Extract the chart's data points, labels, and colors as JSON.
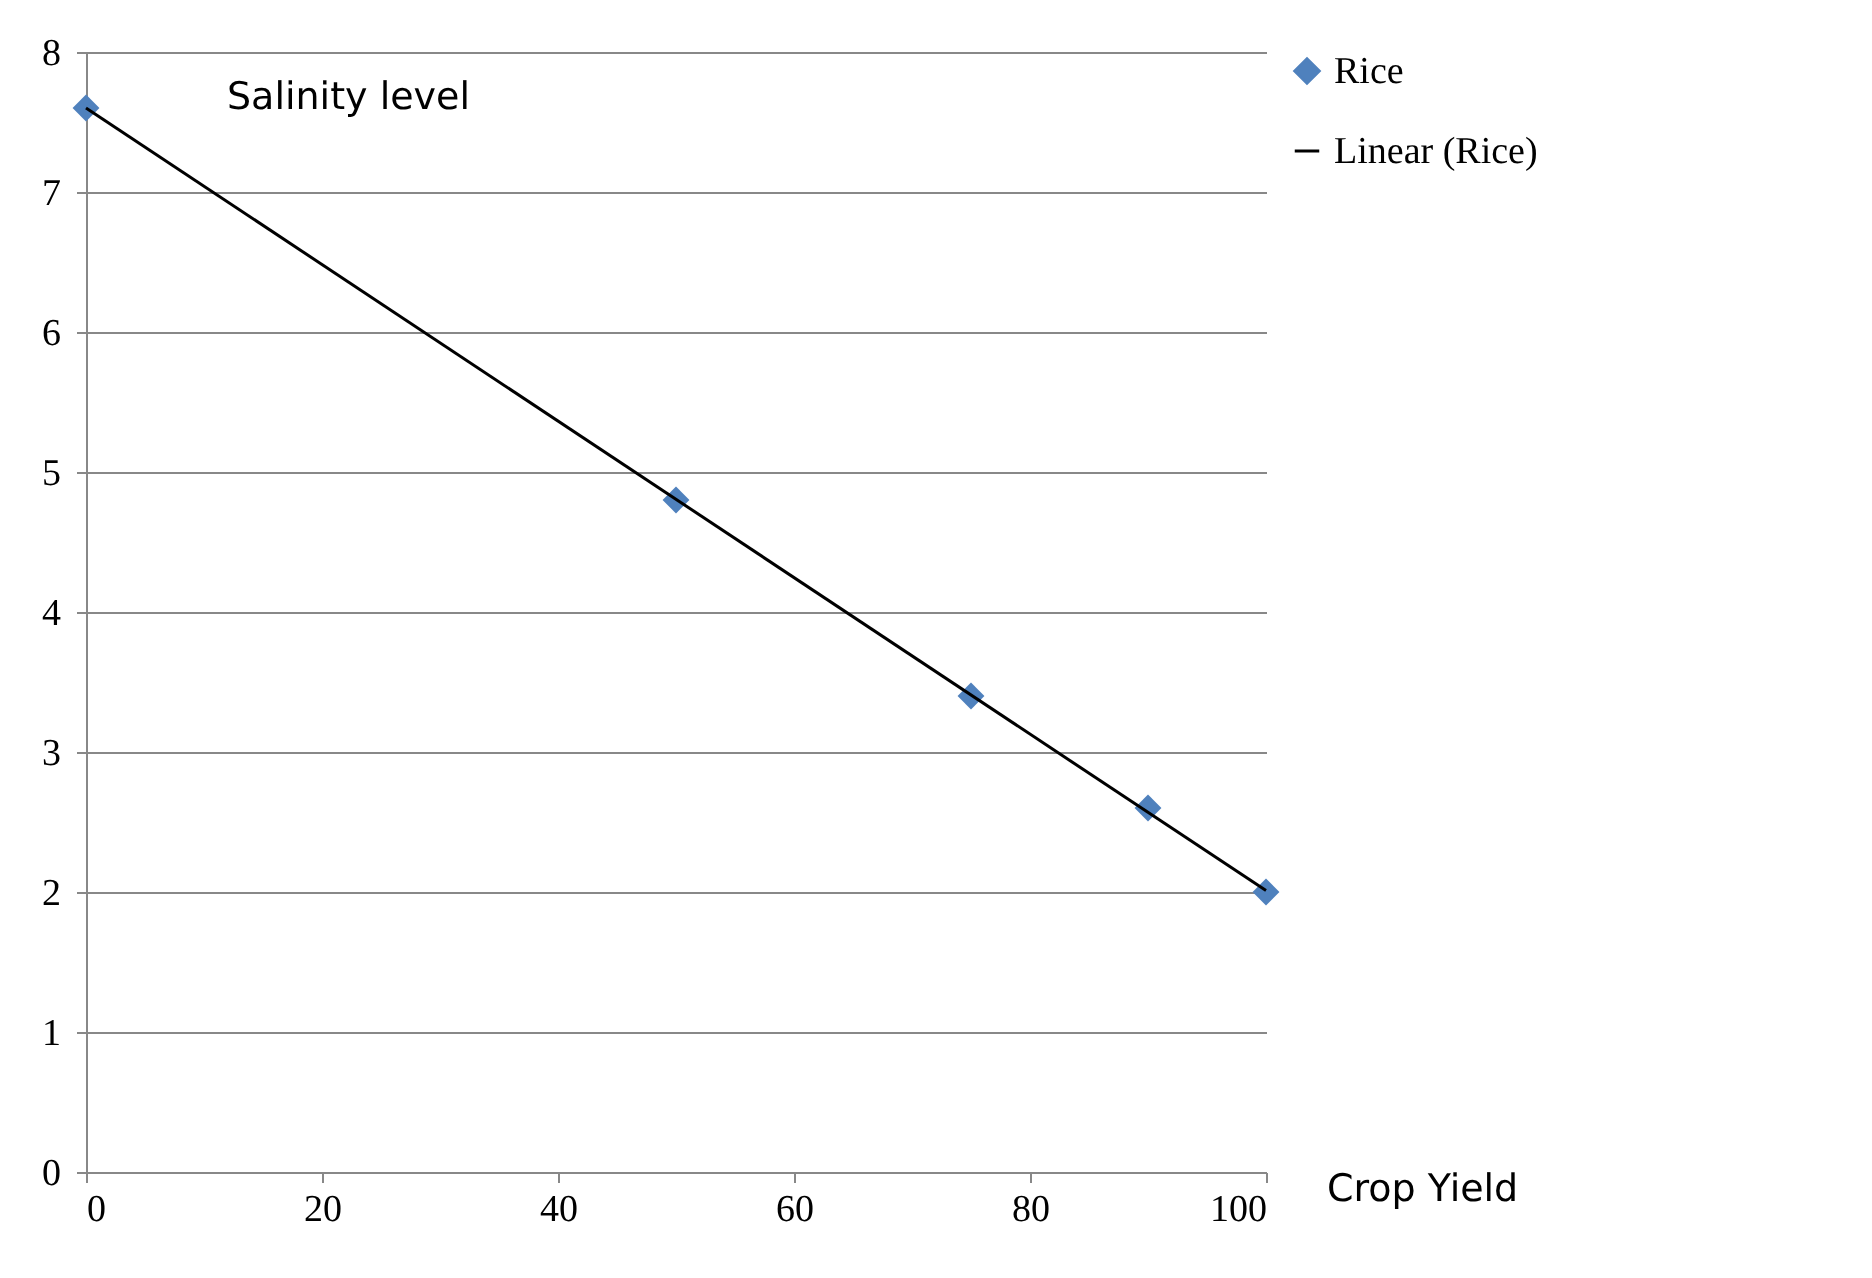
{
  "chart_data": {
    "type": "scatter",
    "xlabel": "Crop Yield",
    "ylabel": "Salinity level",
    "series": [
      {
        "name": "Rice",
        "color": "#4f81bd",
        "x": [
          0,
          50,
          75,
          90,
          100
        ],
        "values": [
          7.6,
          4.8,
          3.4,
          2.6,
          2.0
        ],
        "marker": "diamond"
      },
      {
        "name": "Linear (Rice)",
        "type": "line",
        "color": "#000000",
        "x": [
          0,
          100
        ],
        "values": [
          7.6,
          2.01
        ],
        "line_style": "solid"
      }
    ],
    "xlim": [
      0,
      100
    ],
    "xticks": [
      0,
      20,
      40,
      60,
      80,
      100
    ],
    "ylim": [
      0,
      8
    ],
    "yticks": [
      0,
      1,
      2,
      3,
      4,
      5,
      6,
      7,
      8
    ],
    "grid": "y",
    "legend": "right"
  }
}
